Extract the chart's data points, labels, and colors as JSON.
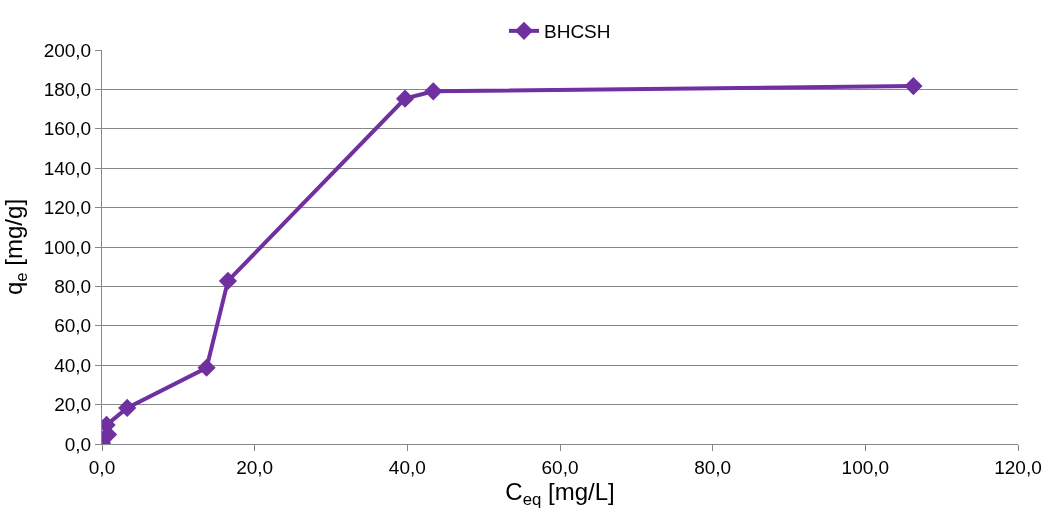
{
  "chart_data": {
    "type": "line",
    "xlabel": "C$_{eq}$ [mg/L]",
    "ylabel": "q$_{e}$ [mg/g]",
    "series": [
      {
        "name": "BHCSH",
        "color": "#7030a0",
        "x": [
          0,
          0.8,
          0.6,
          3.3,
          13.7,
          16.5,
          39.7,
          43.4,
          106.3
        ],
        "values": [
          0.5,
          4.8,
          9.7,
          18.3,
          38.7,
          82.8,
          175.3,
          179.0,
          181.7
        ]
      }
    ],
    "xlim": [
      0,
      120
    ],
    "xticks": [
      {
        "value": 0,
        "label": "0,0"
      },
      {
        "value": 20,
        "label": "20,0"
      },
      {
        "value": 40,
        "label": "40,0"
      },
      {
        "value": 60,
        "label": "60,0"
      },
      {
        "value": 80,
        "label": "80,0"
      },
      {
        "value": 100,
        "label": "100,0"
      },
      {
        "value": 120,
        "label": "120,0"
      }
    ],
    "ylim": [
      0,
      200
    ],
    "yticks": [
      {
        "value": 0,
        "label": "0,0"
      },
      {
        "value": 20,
        "label": "20,0"
      },
      {
        "value": 40,
        "label": "40,0"
      },
      {
        "value": 60,
        "label": "60,0"
      },
      {
        "value": 80,
        "label": "80,0"
      },
      {
        "value": 100,
        "label": "100,0"
      },
      {
        "value": 120,
        "label": "120,0"
      },
      {
        "value": 140,
        "label": "140,0"
      },
      {
        "value": 160,
        "label": "160,0"
      },
      {
        "value": 180,
        "label": "180,0"
      },
      {
        "value": 200,
        "label": "200,0"
      }
    ],
    "grid": "y",
    "legend": "top",
    "marker": "diamond",
    "line_style": "solid"
  }
}
